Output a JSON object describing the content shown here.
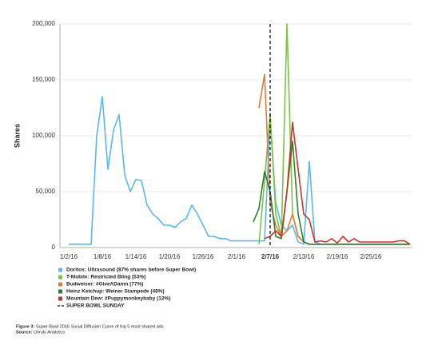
{
  "chart_data": {
    "type": "line",
    "y_label": "Shares",
    "categories": [
      "1/2/16",
      null,
      null,
      null,
      null,
      null,
      "1/8/16",
      null,
      null,
      null,
      null,
      null,
      "1/14/16",
      null,
      null,
      null,
      null,
      null,
      "1/20/16",
      null,
      null,
      null,
      null,
      null,
      "1/26/16",
      null,
      null,
      null,
      null,
      null,
      "2/1/16",
      null,
      null,
      null,
      null,
      null,
      "2/7/16",
      null,
      null,
      null,
      null,
      null,
      "2/13/16",
      null,
      null,
      null,
      null,
      null,
      "2/19/16",
      null,
      null,
      null,
      null,
      null,
      "2/25/16",
      null,
      null,
      null,
      null,
      null,
      null,
      null
    ],
    "ylim": [
      0,
      200000
    ],
    "yticks": [
      0,
      {
        "value": 50000,
        "label": "50,000"
      },
      {
        "value": 100000,
        "label": "100,000"
      },
      {
        "value": 150000,
        "label": "150,000"
      },
      {
        "value": 200000,
        "label": "200,000"
      }
    ],
    "grid": true,
    "legend": "bottom-left",
    "series": [
      {
        "name": "Doritos: Ultrasound (87% shares before Super Bowl)",
        "color": "#5bb8e8",
        "values": [
          3000,
          3000,
          3000,
          3000,
          3000,
          100000,
          135000,
          70000,
          105000,
          119000,
          65000,
          50000,
          61000,
          60000,
          38000,
          30000,
          26000,
          20000,
          20000,
          18000,
          23000,
          26000,
          38000,
          30000,
          20000,
          10000,
          10000,
          8000,
          8000,
          6000,
          6000,
          6000,
          6000,
          6000,
          6000,
          6000,
          115000,
          40000,
          20000,
          15000,
          20000,
          5000,
          3000,
          77000,
          5000,
          3000,
          3000,
          3000,
          3000,
          3000,
          3000,
          3000,
          3000,
          3000,
          3000,
          3000,
          3000,
          3000,
          3000,
          3000,
          3000,
          3000
        ]
      },
      {
        "name": "T-Mobile: Restricted Bling (53%)",
        "color": "#7dc242",
        "values": [
          null,
          null,
          null,
          null,
          null,
          null,
          null,
          null,
          null,
          null,
          null,
          null,
          null,
          null,
          null,
          null,
          null,
          null,
          null,
          null,
          null,
          null,
          null,
          null,
          null,
          null,
          null,
          null,
          null,
          null,
          null,
          null,
          null,
          null,
          3000,
          60000,
          120000,
          30000,
          10000,
          200000,
          30000,
          10000,
          5000,
          3000,
          3000,
          3000,
          3000,
          3000,
          3000,
          3000,
          3000,
          3000,
          3000,
          3000,
          3000,
          3000,
          3000,
          3000,
          3000,
          3000,
          3000,
          3000
        ]
      },
      {
        "name": "Budweiser: #GiveADamn (77%)",
        "color": "#e07b39",
        "values": [
          null,
          null,
          null,
          null,
          null,
          null,
          null,
          null,
          null,
          null,
          null,
          null,
          null,
          null,
          null,
          null,
          null,
          null,
          null,
          null,
          null,
          null,
          null,
          null,
          null,
          null,
          null,
          null,
          null,
          null,
          null,
          null,
          null,
          null,
          125000,
          155000,
          40000,
          20000,
          10000,
          15000,
          30000,
          10000,
          5000,
          3000,
          3000,
          3000,
          3000,
          3000,
          3000,
          3000,
          3000,
          3000,
          3000,
          3000,
          3000,
          3000,
          3000,
          3000,
          3000,
          3000,
          3000,
          3000
        ]
      },
      {
        "name": "Heinz Ketchup: Weiner Stampede (48%)",
        "color": "#2e7d32",
        "values": [
          null,
          null,
          null,
          null,
          null,
          null,
          null,
          null,
          null,
          null,
          null,
          null,
          null,
          null,
          null,
          null,
          null,
          null,
          null,
          null,
          null,
          null,
          null,
          null,
          null,
          null,
          null,
          null,
          null,
          null,
          null,
          null,
          null,
          23000,
          35000,
          68000,
          50000,
          10000,
          8000,
          50000,
          95000,
          30000,
          5000,
          3000,
          3000,
          3000,
          3000,
          3000,
          3000,
          3000,
          3000,
          3000,
          3000,
          3000,
          3000,
          3000,
          3000,
          3000,
          3000,
          3000,
          3000,
          3000
        ]
      },
      {
        "name": "Mountain Dew: #Puppymonkeybaby (12%)",
        "color": "#c0392b",
        "values": [
          null,
          null,
          null,
          null,
          null,
          null,
          null,
          null,
          null,
          null,
          null,
          null,
          null,
          null,
          null,
          null,
          null,
          null,
          null,
          null,
          null,
          null,
          null,
          null,
          null,
          null,
          null,
          null,
          null,
          null,
          null,
          null,
          null,
          null,
          null,
          8000,
          10000,
          15000,
          10000,
          50000,
          112000,
          70000,
          30000,
          25000,
          5000,
          6000,
          5000,
          8000,
          4000,
          10000,
          5000,
          8000,
          5000,
          5000,
          5000,
          5000,
          5000,
          5000,
          5000,
          6000,
          6000,
          3000
        ]
      }
    ],
    "vline": {
      "label": "SUPER BOWL SUNDAY",
      "at": "2/7/16",
      "color": "#111"
    },
    "caption_label": "Figure 3:",
    "caption": "Super Bowl 2016 Social Diffusion Curve of top 5 most shared ads",
    "source_label": "Source:",
    "source": "Unruly Analytics"
  }
}
